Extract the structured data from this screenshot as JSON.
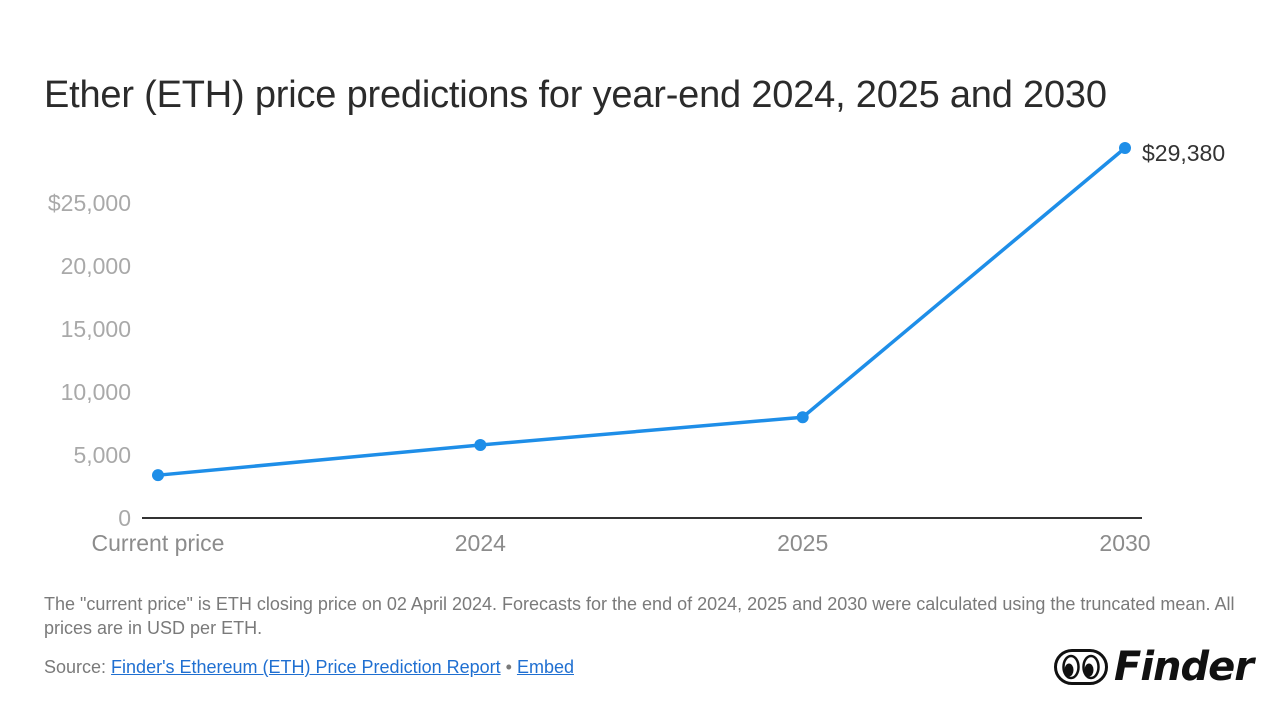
{
  "header": {
    "title": "Ether (ETH) price predictions for year-end 2024, 2025 and 2030"
  },
  "chart_data": {
    "type": "line",
    "categories": [
      "Current price",
      "2024",
      "2025",
      "2030"
    ],
    "series": [
      {
        "values": [
          3400,
          5800,
          8000,
          29380
        ],
        "color": "#1e8ee8"
      }
    ],
    "y_ticks": [
      0,
      5000,
      10000,
      15000,
      20000,
      25000
    ],
    "y_tick_labels": [
      "0",
      "5,000",
      "10,000",
      "15,000",
      "20,000",
      "$25,000"
    ],
    "ylim": [
      0,
      29380
    ],
    "data_labels": [
      {
        "index": 3,
        "text": "$29,380"
      }
    ],
    "grid": false
  },
  "footer": {
    "note": "The \"current price\" is ETH closing price on 02 April 2024. Forecasts for the end of 2024, 2025 and 2030 were calculated using the truncated mean. All prices are in USD per ETH.",
    "source_prefix": "Source: ",
    "source_link": "Finder's Ethereum (ETH) Price Prediction Report",
    "separator": " • ",
    "embed_link": "Embed",
    "logo_text": "Finder",
    "logo_icon": "eyes-icon"
  }
}
